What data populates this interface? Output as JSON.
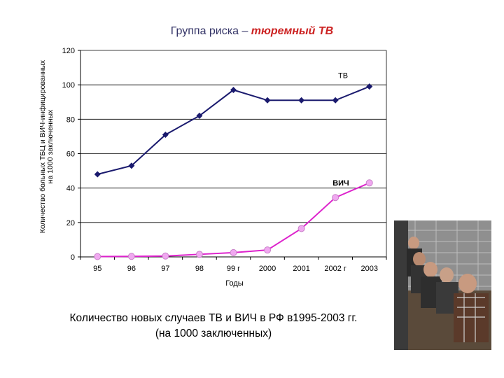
{
  "title": {
    "prefix": "Группа риска – ",
    "highlight": "тюремный ТВ"
  },
  "chart_data": {
    "type": "line",
    "categories": [
      "95",
      "96",
      "97",
      "98",
      "99 г",
      "2000",
      "2001",
      "2002 г",
      "2003"
    ],
    "series": [
      {
        "name": "ТВ",
        "values": [
          48,
          53,
          71,
          82,
          97,
          91,
          91,
          91,
          99
        ],
        "color": "#1a1a6e",
        "marker": "diamond"
      },
      {
        "name": "ВИЧ",
        "values": [
          0.2,
          0.3,
          0.5,
          1.5,
          2.5,
          4,
          16.5,
          34.5,
          43
        ],
        "color": "#dd22cc",
        "marker": "circle"
      }
    ],
    "ylim": [
      0,
      120
    ],
    "yticks": [
      0,
      20,
      40,
      60,
      80,
      100,
      120
    ],
    "xlabel": "Годы",
    "ylabel": [
      "Количество больных ТБЦ и ВИЧ-инфицированных",
      "на 1000 заключенных"
    ],
    "grid": true,
    "legend": "inline-labels"
  },
  "caption": {
    "line1": "Количество новых случаев ТВ и ВИЧ в РФ в1995-2003 гг.",
    "line2": "(на 1000 заключенных)"
  },
  "photo": {
    "icon": "prisoners-photo",
    "colors": {
      "wall": "#8f8f8f",
      "tile": "#a9a9a9",
      "floor": "#5a4a3a",
      "skin": "#c89a80"
    }
  }
}
